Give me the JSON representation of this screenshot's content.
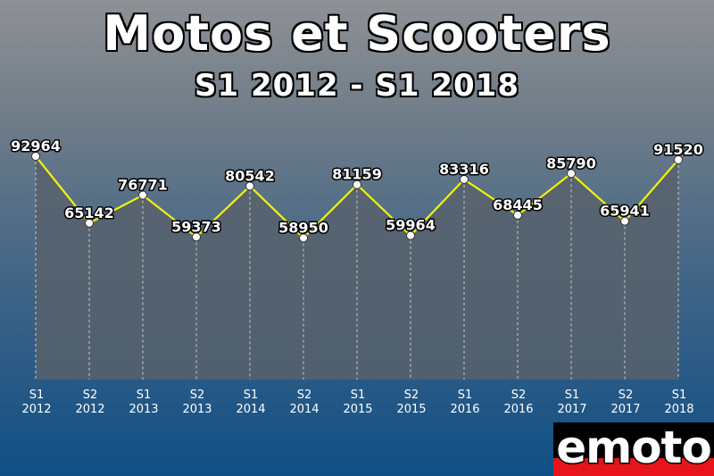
{
  "title": "Motos et Scooters",
  "subtitle": "S1 2012 - S1 2018",
  "logo_text": "emoto",
  "colors": {
    "line": "#f2f20a",
    "area": "#58626c",
    "marker_fill": "#ffffff",
    "label": "#ffffff"
  },
  "chart_data": {
    "type": "line",
    "title": "Motos et Scooters",
    "subtitle": "S1 2012 - S1 2018",
    "categories": [
      [
        "S1",
        "2012"
      ],
      [
        "S2",
        "2012"
      ],
      [
        "S1",
        "2013"
      ],
      [
        "S2",
        "2013"
      ],
      [
        "S1",
        "2014"
      ],
      [
        "S2",
        "2014"
      ],
      [
        "S1",
        "2015"
      ],
      [
        "S2",
        "2015"
      ],
      [
        "S1",
        "2016"
      ],
      [
        "S2",
        "2016"
      ],
      [
        "S1",
        "2017"
      ],
      [
        "S2",
        "2017"
      ],
      [
        "S1",
        "2018"
      ]
    ],
    "values": [
      92964,
      65142,
      76771,
      59373,
      80542,
      58950,
      81159,
      59964,
      83316,
      68445,
      85790,
      65941,
      91520
    ],
    "ylim": [
      0,
      97000
    ],
    "grid": "vertical dashed lines",
    "data_labels": true,
    "legend": false
  }
}
